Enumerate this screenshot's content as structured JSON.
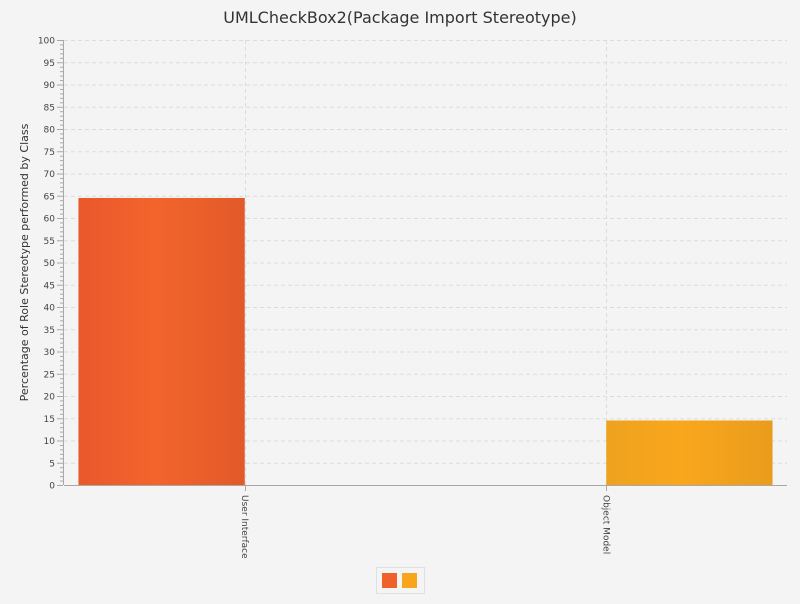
{
  "chart_data": {
    "type": "bar",
    "title": "UMLCheckBox2(Package Import Stereotype)",
    "xlabel": "",
    "ylabel": "Percentage of Role Stereotype performed by Class",
    "ylim": [
      0,
      100
    ],
    "y_major_step": 5,
    "y_minor_step": 1,
    "grid": true,
    "categories": [
      "User Interface",
      "Object Model"
    ],
    "series": [
      {
        "values": [
          64.5,
          null
        ],
        "color": "#f0602b"
      },
      {
        "values": [
          null,
          14.5
        ],
        "color": "#f7a51d"
      }
    ],
    "legend": {
      "placement": "bottom-center",
      "entries": [
        "",
        ""
      ]
    }
  }
}
